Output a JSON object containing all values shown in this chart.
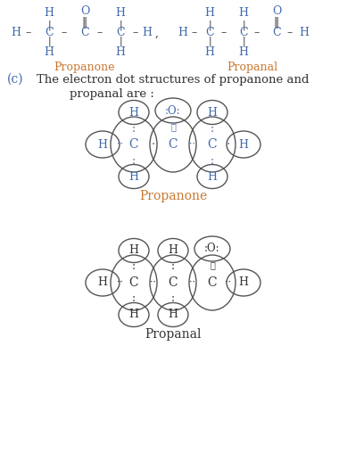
{
  "bg_color": "#ffffff",
  "text_color_blue": "#4169aa",
  "text_color_orange": "#c87830",
  "text_color_dark": "#333333",
  "figsize": [
    3.89,
    5.17
  ],
  "dpi": 100,
  "propanone_label": "Propanone",
  "propanal_label": "Propanal",
  "part_c_text1": "(c)   The electron dot structures of propanone and",
  "part_c_text2": "propanal are :",
  "propanone_dot_label": "Propanone",
  "propanal_dot_label": "Propanal"
}
